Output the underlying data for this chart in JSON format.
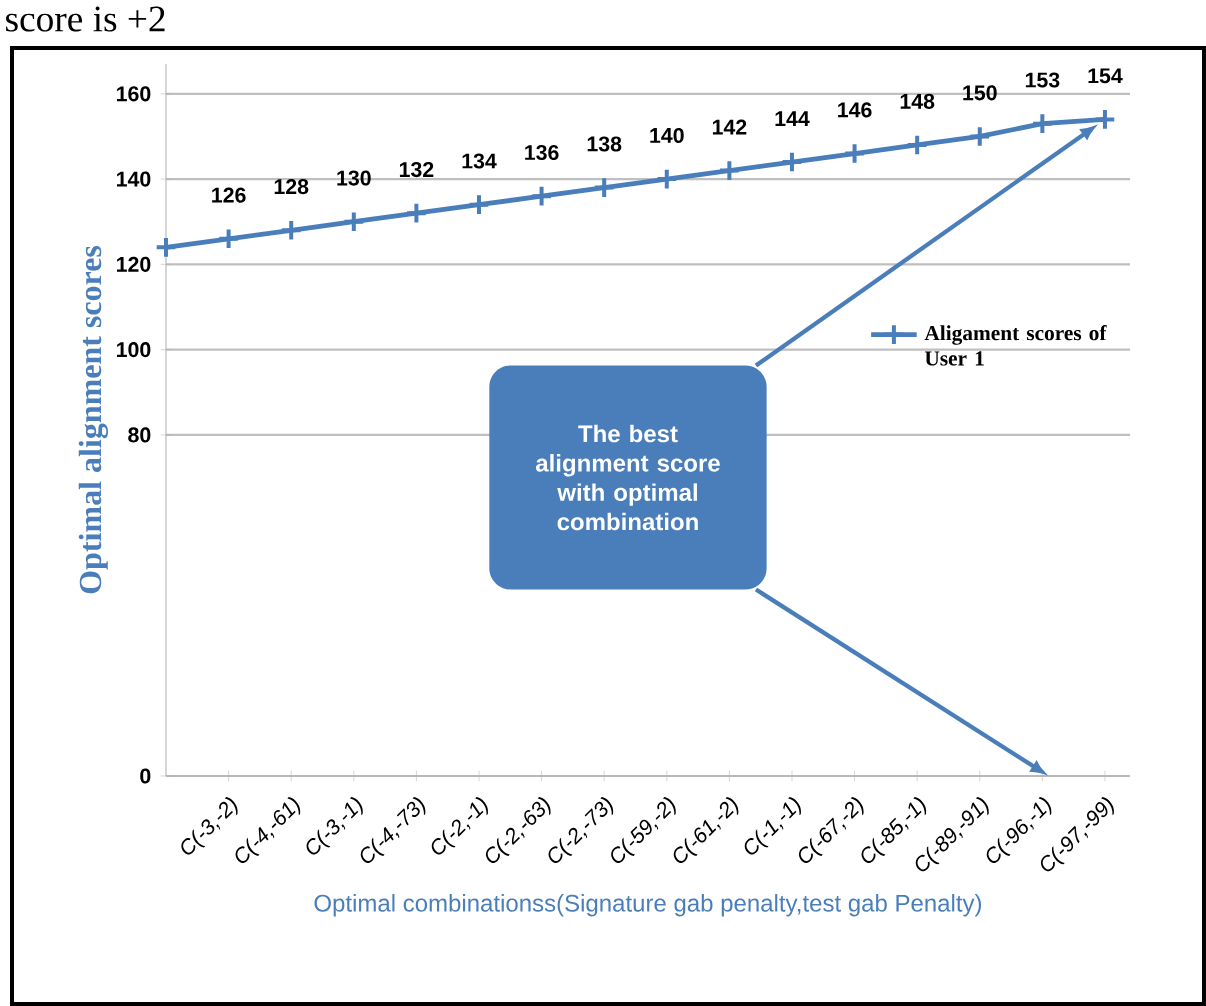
{
  "chart_data": {
    "type": "line",
    "annotations": [
      "score is +2",
      "The best alignment score with optimal combination"
    ],
    "xlabel": "Optimal combinationss(Signature gab penalty,test gab Penalty)",
    "ylabel": "Optimal alignment scores",
    "categories": [
      null,
      "C(-3,-2)",
      "C(-4,-61)",
      "C(-3,-1)",
      "C(-4,-73)",
      "C(-2,-1)",
      "C(-2,-63)",
      "C(-2,-73)",
      "C(-59,-2)",
      "C(-61,-2)",
      "C(-1,-1)",
      "C(-67,-2)",
      "C(-85,-1)",
      "C(-89,-91)",
      "C(-96,-1)",
      "C(-97,-99)"
    ],
    "series": [
      {
        "name": "Aligament scores of User 1",
        "color": "#4a7ebb",
        "values": [
          124,
          126,
          128,
          130,
          132,
          134,
          136,
          138,
          140,
          142,
          144,
          146,
          148,
          150,
          153,
          154
        ]
      }
    ],
    "value_labels": [
      null,
      "126",
      "128",
      "130",
      "132",
      "134",
      "136",
      "138",
      "140",
      "142",
      "144",
      "146",
      "148",
      "150",
      "153",
      "154"
    ],
    "ylim": [
      0,
      167
    ],
    "yticks": [
      0,
      80,
      100,
      120,
      140,
      160
    ],
    "grid": "y",
    "legend": "right",
    "marker": "cross",
    "line_style": "solid"
  }
}
